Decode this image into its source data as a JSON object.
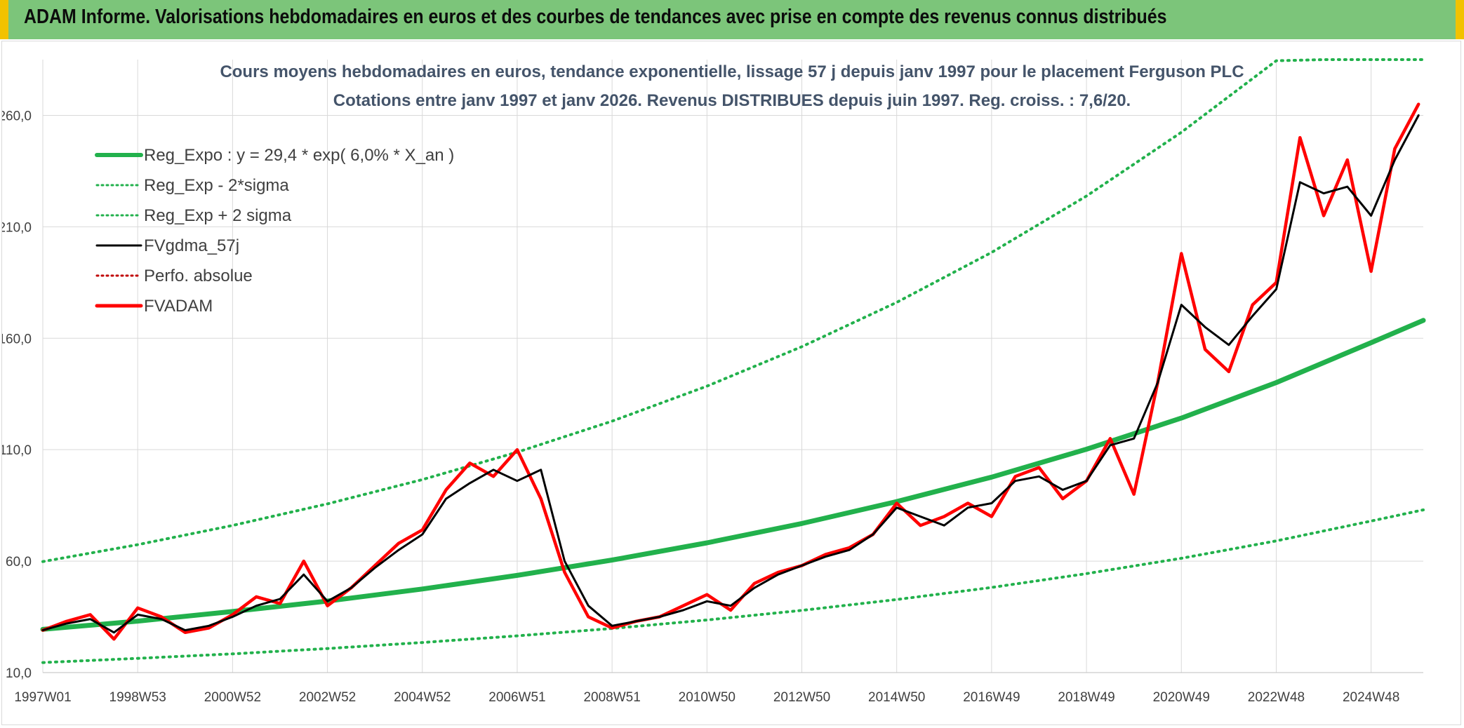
{
  "header": {
    "title": "ADAM Informe. Valorisations hebdomadaires en euros et des courbes de tendances avec prise en compte des revenus connus distribués"
  },
  "colors": {
    "banner": "#7cc57a",
    "banner_border": "#f2c200",
    "reg_expo": "#22b14c",
    "fvgdma": "#000000",
    "fvadam": "#ff0000",
    "perfo": "#c00000",
    "grid": "#d9d9d9"
  },
  "chart_data": {
    "type": "line",
    "title": "Cours moyens hebdomadaires en euros, tendance exponentielle, lissage 57 j depuis janv 1997 pour le placement Ferguson PLC",
    "subtitle": "Cotations entre janv 1997 et janv 2026. Revenus DISTRIBUES depuis juin 1997. Reg. croiss. : 7,6/20.",
    "xlabel": "",
    "ylabel": "",
    "xlim": [
      1997.0,
      2026.1
    ],
    "ylim": [
      10,
      285
    ],
    "y_ticks": [
      10,
      60,
      110,
      160,
      210,
      260
    ],
    "y_tick_labels": [
      "10,0",
      "60,0",
      "110,0",
      "160,0",
      "210,0",
      "260,0"
    ],
    "x_ticks": [
      1997.0,
      1999.0,
      2001.0,
      2003.0,
      2005.0,
      2007.0,
      2009.0,
      2011.0,
      2013.0,
      2015.0,
      2017.0,
      2019.0,
      2021.0,
      2023.0,
      2025.0
    ],
    "x_tick_labels": [
      "1997W01",
      "1998W53",
      "2000W52",
      "2002W52",
      "2004W52",
      "2006W51",
      "2008W51",
      "2010W50",
      "2012W50",
      "2014W50",
      "2016W49",
      "2018W49",
      "2020W49",
      "2022W48",
      "2024W48"
    ],
    "grid": true,
    "legend_position": "top-left",
    "legend": [
      {
        "label": "Reg_Expo : y = 29,4 * exp( 6,0% *  X_an )",
        "style": "solid-thick",
        "color": "#22b14c"
      },
      {
        "label": "Reg_Exp - 2*sigma",
        "style": "dotted",
        "color": "#22b14c"
      },
      {
        "label": "Reg_Exp + 2 sigma",
        "style": "dotted",
        "color": "#22b14c"
      },
      {
        "label": "FVgdma_57j",
        "style": "solid",
        "color": "#000000"
      },
      {
        "label": "Perfo. absolue",
        "style": "dotted",
        "color": "#c00000"
      },
      {
        "label": "FVADAM",
        "style": "solid-thick",
        "color": "#ff0000"
      }
    ],
    "series": [
      {
        "name": "Reg_Expo : y = 29,4 * exp( 6,0% *  X_an )",
        "x": [
          1997.0,
          1999.0,
          2001.0,
          2003.0,
          2005.0,
          2007.0,
          2009.0,
          2011.0,
          2013.0,
          2015.0,
          2017.0,
          2019.0,
          2021.0,
          2023.0,
          2025.0,
          2026.1
        ],
        "values": [
          29.4,
          33.1,
          37.4,
          42.1,
          47.5,
          53.6,
          60.5,
          68.2,
          76.9,
          86.7,
          97.7,
          110.2,
          124.2,
          140.1,
          158.0,
          168.0
        ]
      },
      {
        "name": "Reg_Exp - 2*sigma",
        "x": [
          1997.0,
          1999.0,
          2001.0,
          2003.0,
          2005.0,
          2007.0,
          2009.0,
          2011.0,
          2013.0,
          2015.0,
          2017.0,
          2019.0,
          2021.0,
          2023.0,
          2025.0,
          2026.1
        ],
        "values": [
          14.5,
          16.4,
          18.4,
          20.8,
          23.5,
          26.5,
          29.8,
          33.6,
          37.9,
          42.8,
          48.2,
          54.4,
          61.3,
          69.1,
          78.0,
          83.0
        ]
      },
      {
        "name": "Reg_Exp + 2 sigma",
        "x": [
          1997.0,
          1999.0,
          2001.0,
          2003.0,
          2005.0,
          2007.0,
          2009.0,
          2011.0,
          2013.0,
          2015.0,
          2017.0,
          2019.0,
          2021.0,
          2023.0,
          2024.0,
          2026.1
        ],
        "values": [
          59.8,
          67.4,
          76.0,
          85.7,
          96.6,
          108.9,
          122.8,
          138.5,
          156.2,
          176.1,
          198.5,
          223.8,
          252.4,
          284.5,
          285.0,
          285.0
        ]
      },
      {
        "name": "FVgdma_57j",
        "x": [
          1997.0,
          1997.5,
          1998.0,
          1998.5,
          1999.0,
          1999.5,
          2000.0,
          2000.5,
          2001.0,
          2001.5,
          2002.0,
          2002.5,
          2003.0,
          2003.5,
          2004.0,
          2004.5,
          2005.0,
          2005.5,
          2006.0,
          2006.5,
          2007.0,
          2007.5,
          2008.0,
          2008.5,
          2009.0,
          2009.5,
          2010.0,
          2010.5,
          2011.0,
          2011.5,
          2012.0,
          2012.5,
          2013.0,
          2013.5,
          2014.0,
          2014.5,
          2015.0,
          2015.5,
          2016.0,
          2016.5,
          2017.0,
          2017.5,
          2018.0,
          2018.5,
          2019.0,
          2019.5,
          2020.0,
          2020.5,
          2021.0,
          2021.5,
          2022.0,
          2022.5,
          2023.0,
          2023.5,
          2024.0,
          2024.5,
          2025.0,
          2025.5,
          2026.0
        ],
        "values": [
          29,
          32,
          34,
          28,
          36,
          34,
          29,
          31,
          35,
          40,
          43,
          54,
          42,
          48,
          57,
          65,
          72,
          88,
          95,
          101,
          96,
          101,
          60,
          40,
          31,
          33,
          35,
          38,
          42,
          40,
          48,
          54,
          58,
          62,
          65,
          72,
          84,
          80,
          76,
          84,
          86,
          96,
          98,
          92,
          96,
          112,
          115,
          140,
          175,
          165,
          157,
          170,
          182,
          230,
          225,
          228,
          215,
          240,
          260
        ]
      },
      {
        "name": "FVADAM",
        "x": [
          1997.0,
          1997.5,
          1998.0,
          1998.5,
          1999.0,
          1999.5,
          2000.0,
          2000.5,
          2001.0,
          2001.5,
          2002.0,
          2002.5,
          2003.0,
          2003.5,
          2004.0,
          2004.5,
          2005.0,
          2005.5,
          2006.0,
          2006.5,
          2007.0,
          2007.5,
          2008.0,
          2008.5,
          2009.0,
          2009.5,
          2010.0,
          2010.5,
          2011.0,
          2011.5,
          2012.0,
          2012.5,
          2013.0,
          2013.5,
          2014.0,
          2014.5,
          2015.0,
          2015.5,
          2016.0,
          2016.5,
          2017.0,
          2017.5,
          2018.0,
          2018.5,
          2019.0,
          2019.5,
          2020.0,
          2020.5,
          2021.0,
          2021.5,
          2022.0,
          2022.5,
          2023.0,
          2023.5,
          2024.0,
          2024.5,
          2025.0,
          2025.5,
          2026.0
        ],
        "values": [
          29,
          33,
          36,
          25,
          39,
          35,
          28,
          30,
          36,
          44,
          41,
          60,
          40,
          48,
          58,
          68,
          74,
          92,
          104,
          98,
          110,
          88,
          55,
          35,
          30,
          33,
          35,
          40,
          45,
          38,
          50,
          55,
          58,
          63,
          66,
          72,
          86,
          76,
          80,
          86,
          80,
          98,
          102,
          88,
          96,
          115,
          90,
          140,
          198,
          155,
          145,
          175,
          185,
          250,
          215,
          240,
          190,
          245,
          265
        ]
      }
    ]
  }
}
